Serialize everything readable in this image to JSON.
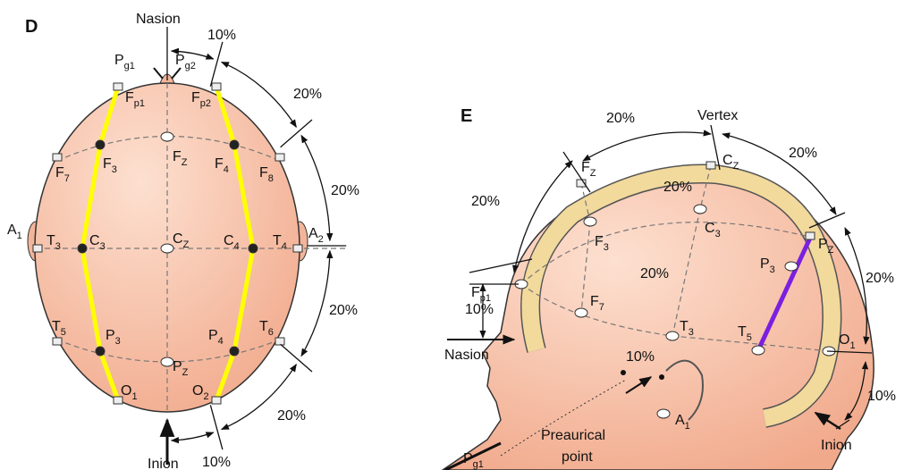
{
  "panel_d": {
    "label": "D",
    "nasion": "Nasion",
    "inion": "Inion",
    "electrodes": [
      {
        "base": "P",
        "sub": "g1"
      },
      {
        "base": "P",
        "sub": "g2"
      },
      {
        "base": "F",
        "sub": "p1"
      },
      {
        "base": "F",
        "sub": "p2"
      },
      {
        "base": "F",
        "sub": "7"
      },
      {
        "base": "F",
        "sub": "3"
      },
      {
        "base": "F",
        "sub": "Z"
      },
      {
        "base": "F",
        "sub": "4"
      },
      {
        "base": "F",
        "sub": "8"
      },
      {
        "base": "A",
        "sub": "1"
      },
      {
        "base": "T",
        "sub": "3"
      },
      {
        "base": "C",
        "sub": "3"
      },
      {
        "base": "C",
        "sub": "Z"
      },
      {
        "base": "C",
        "sub": "4"
      },
      {
        "base": "T",
        "sub": "4"
      },
      {
        "base": "A",
        "sub": "2"
      },
      {
        "base": "T",
        "sub": "5"
      },
      {
        "base": "P",
        "sub": "3"
      },
      {
        "base": "P",
        "sub": "Z"
      },
      {
        "base": "P",
        "sub": "4"
      },
      {
        "base": "T",
        "sub": "6"
      },
      {
        "base": "O",
        "sub": "1"
      },
      {
        "base": "O",
        "sub": "2"
      }
    ],
    "percents": [
      "10%",
      "20%",
      "20%",
      "20%",
      "20%",
      "10%"
    ]
  },
  "panel_e": {
    "label": "E",
    "vertex": "Vertex",
    "nasion": "Nasion",
    "inion": "Inion",
    "preauricular": [
      "Preaurical",
      "point"
    ],
    "electrodes": [
      {
        "base": "F",
        "sub": "Z"
      },
      {
        "base": "C",
        "sub": "Z"
      },
      {
        "base": "F",
        "sub": "3"
      },
      {
        "base": "C",
        "sub": "3"
      },
      {
        "base": "F",
        "sub": "p1"
      },
      {
        "base": "F",
        "sub": "7"
      },
      {
        "base": "T",
        "sub": "3"
      },
      {
        "base": "T",
        "sub": "5"
      },
      {
        "base": "P",
        "sub": "3"
      },
      {
        "base": "P",
        "sub": "Z"
      },
      {
        "base": "O",
        "sub": "1"
      },
      {
        "base": "A",
        "sub": "1"
      },
      {
        "base": "P",
        "sub": "g1"
      }
    ],
    "percents": [
      "20%",
      "20%",
      "20%",
      "20%",
      "20%",
      "20%",
      "10%",
      "10%",
      "10%"
    ]
  }
}
